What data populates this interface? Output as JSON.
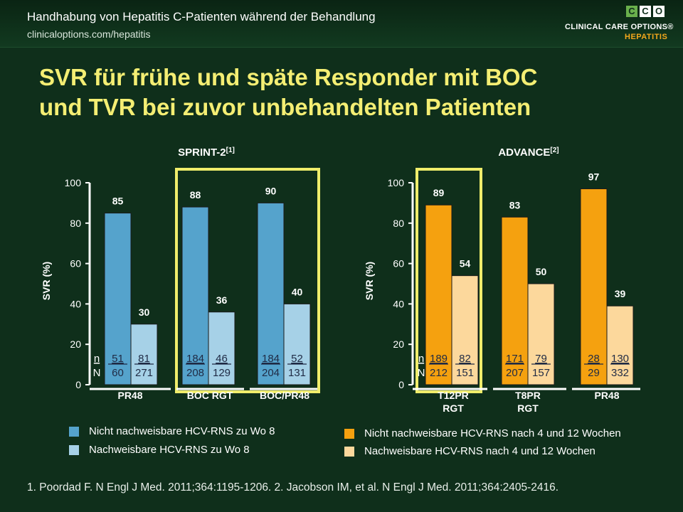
{
  "header": {
    "title": "Handhabung von Hepatitis C-Patienten während der Behandlung",
    "url": "clinicaloptions.com/hepatitis",
    "logo_letters": [
      "C",
      "C",
      "O"
    ],
    "logo_name": "CLINICAL CARE OPTIONS®",
    "logo_sub": "HEPATITIS"
  },
  "title_lines": [
    "SVR für frühe und späte Responder mit BOC",
    "und TVR bei zuvor unbehandelten Patienten"
  ],
  "colors": {
    "background": "#0f2f1b",
    "title": "#f4ee73",
    "highlight_frame": "#f0ed6b",
    "sprint_dark": "#55a3cc",
    "sprint_light": "#a6d1e7",
    "advance_dark": "#f5a10f",
    "advance_light": "#fcd89c"
  },
  "chart_data": [
    {
      "type": "bar",
      "title": "SPRINT-2",
      "title_ref": "[1]",
      "ylabel": "SVR (%)",
      "ylim": [
        0,
        100
      ],
      "yticks": [
        0,
        20,
        40,
        60,
        80,
        100
      ],
      "categories": [
        "PR48",
        "BOC RGT",
        "BOC/PR48"
      ],
      "series": [
        {
          "name": "Nicht nachweisbare HCV-RNS zu Wo 8",
          "values": [
            85,
            88,
            90
          ],
          "n": [
            "51",
            "184",
            "184"
          ],
          "N": [
            "60",
            "208",
            "204"
          ]
        },
        {
          "name": "Nachweisbare HCV-RNS zu Wo 8",
          "values": [
            30,
            36,
            40
          ],
          "n": [
            "81",
            "46",
            "52"
          ],
          "N": [
            "271",
            "129",
            "131"
          ]
        }
      ],
      "n_label": "n",
      "N_label": "N",
      "highlighted_categories": [
        "BOC RGT",
        "BOC/PR48"
      ]
    },
    {
      "type": "bar",
      "title": "ADVANCE",
      "title_ref": "[2]",
      "ylabel": "SVR (%)",
      "ylim": [
        0,
        100
      ],
      "yticks": [
        0,
        20,
        40,
        60,
        80,
        100
      ],
      "categories": [
        "T12PR RGT",
        "T8PR RGT",
        "PR48"
      ],
      "category_lines": [
        [
          "T12PR",
          "RGT"
        ],
        [
          "T8PR",
          "RGT"
        ],
        [
          "PR48"
        ]
      ],
      "series": [
        {
          "name": "Nicht nachweisbare HCV-RNS nach 4 und 12 Wochen",
          "values": [
            89,
            83,
            97
          ],
          "n": [
            "189",
            "171",
            "28"
          ],
          "N": [
            "212",
            "207",
            "29"
          ]
        },
        {
          "name": "Nachweisbare HCV-RNS nach 4 und 12 Wochen",
          "values": [
            54,
            50,
            39
          ],
          "n": [
            "82",
            "79",
            "130"
          ],
          "N": [
            "151",
            "157",
            "332"
          ]
        }
      ],
      "n_label": "n",
      "N_label": "N",
      "highlighted_categories": [
        "T12PR RGT"
      ]
    }
  ],
  "footnote": "1. Poordad F. N Engl J Med. 2011;364:1195-1206. 2. Jacobson IM, et al. N Engl J Med. 2011;364:2405-2416."
}
